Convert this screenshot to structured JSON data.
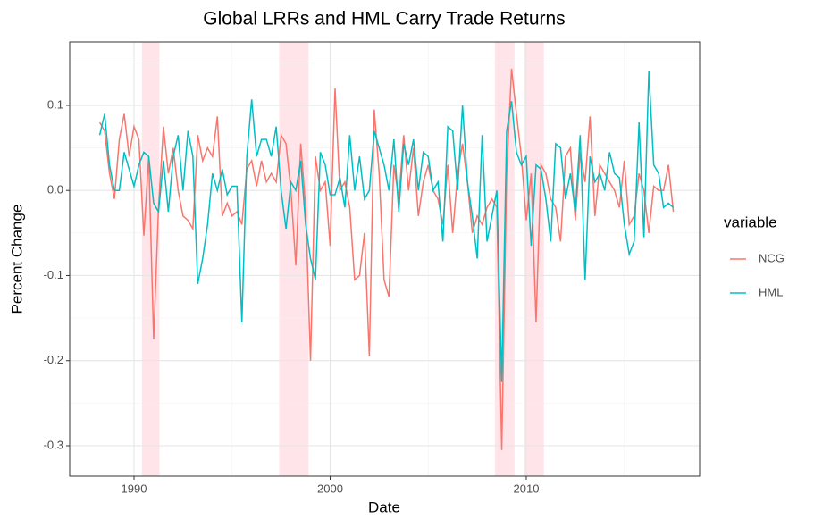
{
  "chart_data": {
    "type": "line",
    "title": "Global LRRs and HML Carry Trade Returns",
    "x_label": "Date",
    "y_label": "Percent Change",
    "legend_title": "variable",
    "legend_position": "right",
    "x": [
      1988.25,
      1988.5,
      1988.75,
      1989,
      1989.25,
      1989.5,
      1989.75,
      1990,
      1990.25,
      1990.5,
      1990.75,
      1991,
      1991.25,
      1991.5,
      1991.75,
      1992,
      1992.25,
      1992.5,
      1992.75,
      1993,
      1993.25,
      1993.5,
      1993.75,
      1994,
      1994.25,
      1994.5,
      1994.75,
      1995,
      1995.25,
      1995.5,
      1995.75,
      1996,
      1996.25,
      1996.5,
      1996.75,
      1997,
      1997.25,
      1997.5,
      1997.75,
      1998,
      1998.25,
      1998.5,
      1998.75,
      1999,
      1999.25,
      1999.5,
      1999.75,
      2000,
      2000.25,
      2000.5,
      2000.75,
      2001,
      2001.25,
      2001.5,
      2001.75,
      2002,
      2002.25,
      2002.5,
      2002.75,
      2003,
      2003.25,
      2003.5,
      2003.75,
      2004,
      2004.25,
      2004.5,
      2004.75,
      2005,
      2005.25,
      2005.5,
      2005.75,
      2006,
      2006.25,
      2006.5,
      2006.75,
      2007,
      2007.25,
      2007.5,
      2007.75,
      2008,
      2008.25,
      2008.5,
      2008.75,
      2009,
      2009.25,
      2009.5,
      2009.75,
      2010,
      2010.25,
      2010.5,
      2010.75,
      2011,
      2011.25,
      2011.5,
      2011.75,
      2012,
      2012.25,
      2012.5,
      2012.75,
      2013,
      2013.25,
      2013.5,
      2013.75,
      2014,
      2014.25,
      2014.5,
      2014.75,
      2015,
      2015.25,
      2015.5,
      2015.75,
      2016,
      2016.25,
      2016.5,
      2016.75,
      2017,
      2017.25,
      2017.5
    ],
    "series": [
      {
        "name": "NCG",
        "color": "#F8766D",
        "values": [
          0.08,
          0.07,
          0.02,
          -0.01,
          0.06,
          0.09,
          0.04,
          0.075,
          0.06,
          -0.053,
          0.04,
          -0.175,
          -0.02,
          0.075,
          0.02,
          0.05,
          0,
          -0.03,
          -0.035,
          -0.045,
          0.065,
          0.035,
          0.05,
          0.04,
          0.087,
          -0.03,
          -0.015,
          -0.03,
          -0.025,
          -0.04,
          0.025,
          0.035,
          0.005,
          0.035,
          0.01,
          0.02,
          0.01,
          0.065,
          0.055,
          0,
          -0.088,
          0.055,
          -0.02,
          -0.2,
          0.04,
          0,
          0.01,
          -0.065,
          0.12,
          0,
          0.01,
          -0.02,
          -0.105,
          -0.1,
          -0.05,
          -0.195,
          0.095,
          0.02,
          -0.105,
          -0.125,
          0.03,
          -0.01,
          0.065,
          0,
          0.05,
          -0.03,
          0.01,
          0.03,
          0,
          -0.01,
          -0.04,
          0.03,
          -0.05,
          0.02,
          0.055,
          0.01,
          -0.05,
          -0.03,
          -0.04,
          -0.02,
          -0.01,
          -0.02,
          -0.305,
          0.02,
          0.143,
          0.09,
          0.04,
          -0.035,
          0.02,
          -0.155,
          0.03,
          0.02,
          -0.01,
          -0.02,
          -0.06,
          0.04,
          0.05,
          -0.035,
          0.045,
          0.01,
          0.087,
          -0.03,
          0.03,
          0.02,
          0.01,
          0,
          -0.02,
          0.035,
          -0.04,
          -0.03,
          0.02,
          0,
          -0.05,
          0.005,
          0,
          0,
          0.03,
          -0.025
        ]
      },
      {
        "name": "HML",
        "color": "#00BFC4",
        "values": [
          0.065,
          0.09,
          0.03,
          0,
          0,
          0.045,
          0.025,
          0.005,
          0.03,
          0.045,
          0.04,
          -0.015,
          -0.025,
          0.035,
          -0.025,
          0.04,
          0.065,
          0,
          0.07,
          0.04,
          -0.11,
          -0.08,
          -0.04,
          0.02,
          0,
          0.025,
          -0.005,
          0.005,
          0.005,
          -0.155,
          0.04,
          0.107,
          0.04,
          0.06,
          0.06,
          0.04,
          0.075,
          0,
          -0.045,
          0.01,
          0,
          0.035,
          -0.04,
          -0.08,
          -0.105,
          0.045,
          0.03,
          -0.005,
          -0.005,
          0.015,
          -0.02,
          0.065,
          0,
          0.04,
          -0.01,
          0,
          0.07,
          0.05,
          0.03,
          0,
          0.06,
          -0.025,
          0.055,
          0.03,
          0.06,
          0,
          0.045,
          0.04,
          0,
          0.01,
          -0.06,
          0.075,
          0.07,
          0,
          0.1,
          0.01,
          -0.03,
          -0.08,
          0.065,
          -0.06,
          -0.03,
          0,
          -0.225,
          0.07,
          0.105,
          0.045,
          0.03,
          0.04,
          -0.065,
          0.03,
          0.025,
          -0.01,
          -0.06,
          0.055,
          0.05,
          -0.01,
          0.02,
          -0.025,
          0.065,
          -0.105,
          0.04,
          0.01,
          0.02,
          0,
          0.045,
          0.02,
          0.015,
          -0.04,
          -0.075,
          -0.06,
          0.08,
          -0.055,
          0.14,
          0.03,
          0.02,
          -0.02,
          -0.015,
          -0.02
        ]
      }
    ],
    "bands": [
      [
        1990.4,
        1991.3
      ],
      [
        1997.4,
        1998.9
      ],
      [
        2008.4,
        2009.4
      ],
      [
        2009.9,
        2010.9
      ]
    ],
    "band_color": "#FFE4EA",
    "xlim": [
      1986.72,
      2018.84
    ],
    "xticks": [
      1990,
      2000,
      2010
    ],
    "minor_xticks": [
      1995,
      2005,
      2015
    ],
    "ylim": [
      -0.3357,
      0.1745
    ],
    "yticks": [
      -0.3,
      -0.2,
      -0.1,
      {
        "value": 0,
        "label": "0.0"
      },
      0.1
    ],
    "minor_yticks": [
      -0.25,
      -0.15,
      -0.05,
      0.05,
      0.15
    ],
    "grid": true
  }
}
